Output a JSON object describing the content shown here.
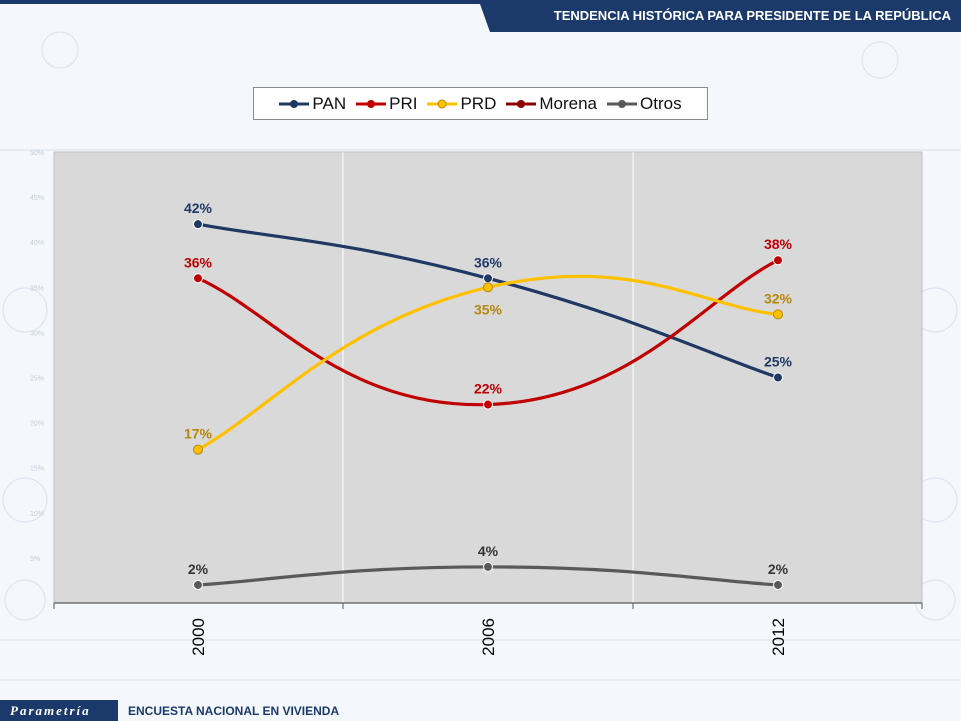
{
  "header": {
    "title": "TENDENCIA HISTÓRICA PARA PRESIDENTE DE LA REPÚBLICA"
  },
  "footer": {
    "logo": "Parametría",
    "text": "ENCUESTA NACIONAL EN VIVIENDA"
  },
  "legend": [
    {
      "name": "PAN",
      "color": "#1f3864"
    },
    {
      "name": "PRI",
      "color": "#c00000"
    },
    {
      "name": "PRD",
      "color": "#ffc000"
    },
    {
      "name": "Morena",
      "color": "#8b0000"
    },
    {
      "name": "Otros",
      "color": "#595959"
    }
  ],
  "chart_data": {
    "type": "line",
    "categories": [
      "2000",
      "2006",
      "2012"
    ],
    "ylim": [
      0,
      50
    ],
    "yticks": [
      "5%",
      "10%",
      "15%",
      "20%",
      "25%",
      "30%",
      "35%",
      "40%",
      "45%",
      "50%"
    ],
    "grid": "vertical",
    "legend_position": "top",
    "series": [
      {
        "name": "PAN",
        "color": "#1f3864",
        "label_color": "#1f3864",
        "values": [
          42,
          36,
          25
        ],
        "labels": [
          "42%",
          "36%",
          "25%"
        ],
        "label_pos": [
          "above",
          "above",
          "above"
        ]
      },
      {
        "name": "PRI",
        "color": "#c00000",
        "label_color": "#c00000",
        "values": [
          36,
          22,
          38
        ],
        "labels": [
          "36%",
          "22%",
          "38%"
        ],
        "label_pos": [
          "above",
          "above",
          "above"
        ]
      },
      {
        "name": "PRD",
        "color": "#ffc000",
        "label_color": "#b8860b",
        "values": [
          17,
          35,
          32
        ],
        "labels": [
          "17%",
          "35%",
          "32%"
        ],
        "label_pos": [
          "above",
          "below",
          "above"
        ]
      },
      {
        "name": "Otros",
        "color": "#595959",
        "label_color": "#333333",
        "values": [
          2,
          4,
          2
        ],
        "labels": [
          "2%",
          "4%",
          "2%"
        ],
        "label_pos": [
          "above",
          "above",
          "above"
        ]
      }
    ]
  }
}
